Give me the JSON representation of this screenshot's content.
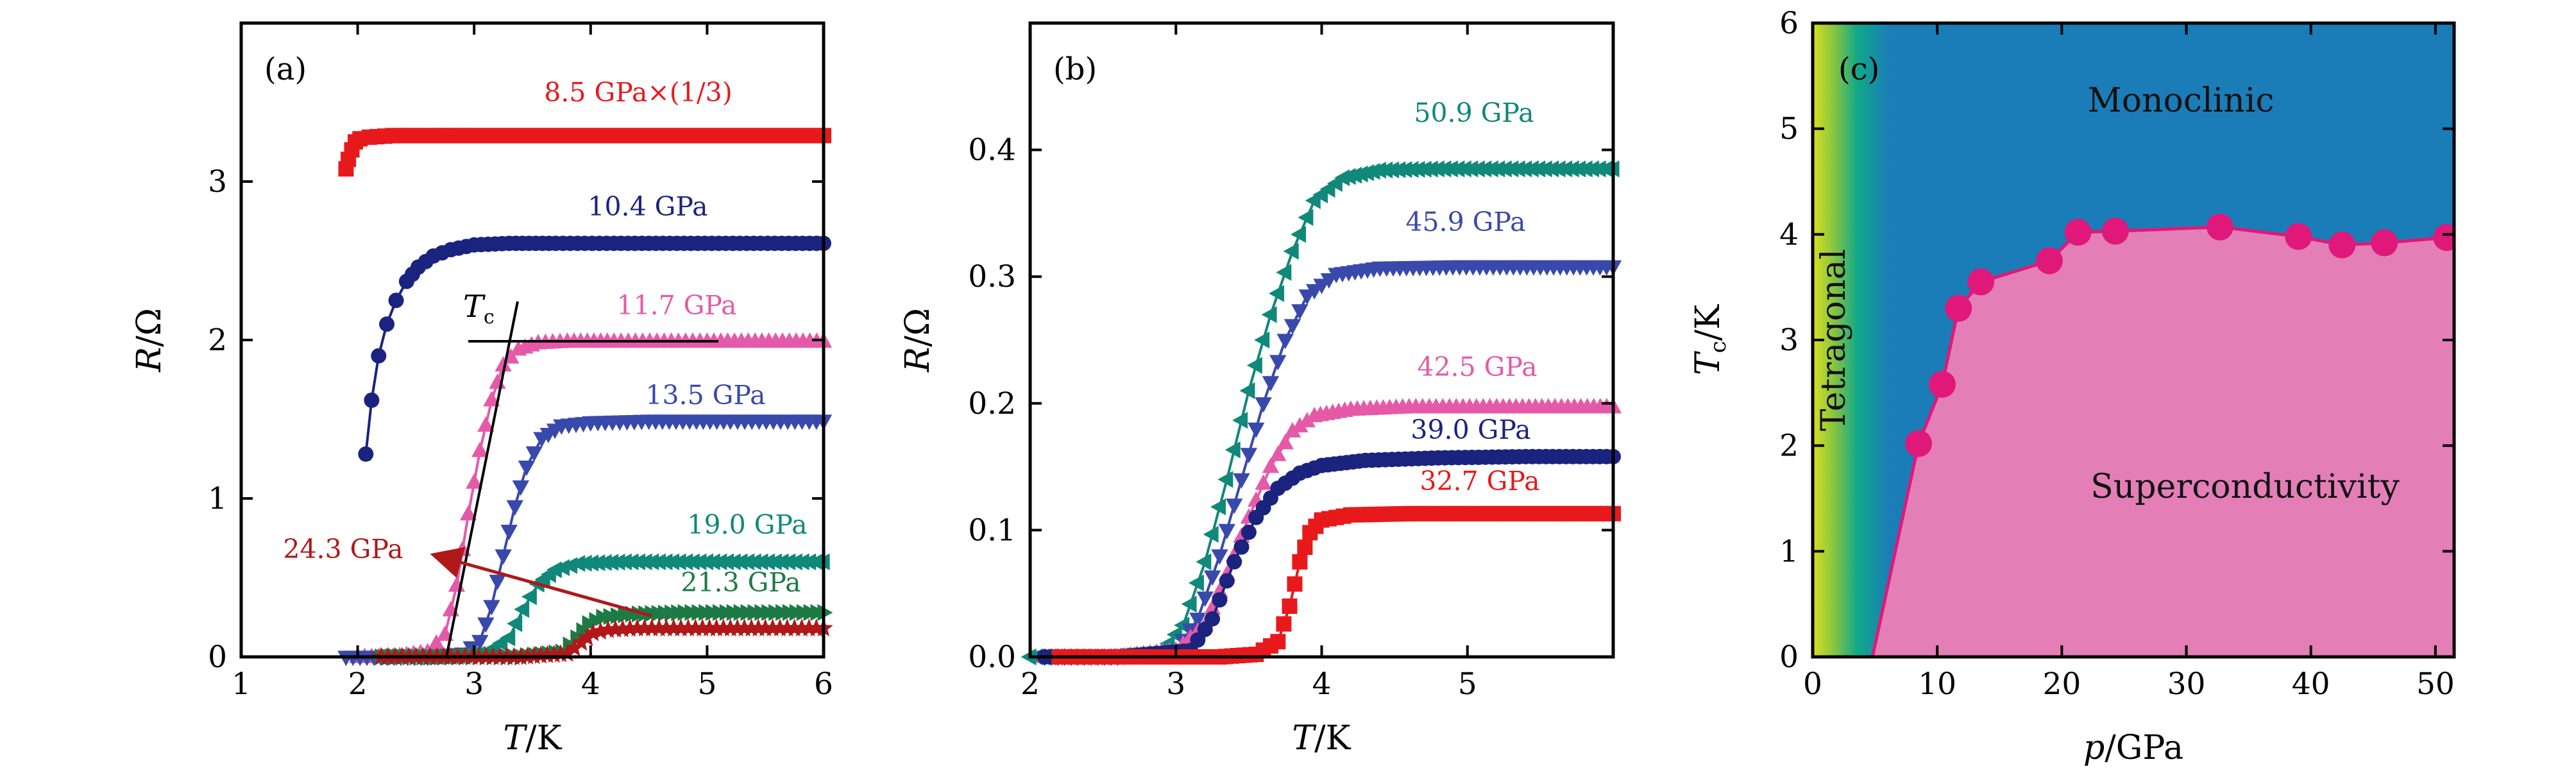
{
  "colors": {
    "red": "#e8191b",
    "navy": "#1a237e",
    "pink": "#e55aa8",
    "blue": "#3949ab",
    "teal": "#10887a",
    "green": "#1d7a45",
    "darkred": "#b0181a",
    "mono": "#1a7db8",
    "supercond": "#e37fb6",
    "tc_line": "#e0187a"
  },
  "chart_data": [
    {
      "panel": "(a)",
      "type": "line",
      "xlabel_italic": "T",
      "xlabel_rest": "/K",
      "ylabel_italic": "R",
      "ylabel_rest": "/Ω",
      "xlim": [
        1,
        6
      ],
      "ylim": [
        0,
        4
      ],
      "xticks": [
        1,
        2,
        3,
        4,
        5,
        6
      ],
      "yticks": [
        0,
        1,
        2,
        3
      ],
      "tc_annotation": "T",
      "tc_sub": "c",
      "arrow_label": "24.3 GPa",
      "series": [
        {
          "name": "8.5 GPa×(1/3)",
          "color": "red",
          "marker": "square",
          "x": [
            1.9,
            1.92,
            1.95,
            1.98,
            2.02,
            2.1,
            2.3,
            2.6,
            3.0,
            3.5,
            4.0,
            4.5,
            5.0,
            5.5,
            6.0
          ],
          "y": [
            3.08,
            3.14,
            3.2,
            3.25,
            3.27,
            3.28,
            3.29,
            3.29,
            3.29,
            3.29,
            3.29,
            3.29,
            3.29,
            3.29,
            3.29
          ]
        },
        {
          "name": "10.4 GPa",
          "color": "navy",
          "marker": "circle",
          "x": [
            2.07,
            2.12,
            2.18,
            2.25,
            2.33,
            2.42,
            2.52,
            2.65,
            2.8,
            3.0,
            3.3,
            3.7,
            4.2,
            4.8,
            5.4,
            6.0
          ],
          "y": [
            1.28,
            1.62,
            1.9,
            2.1,
            2.25,
            2.37,
            2.46,
            2.53,
            2.57,
            2.6,
            2.61,
            2.61,
            2.61,
            2.61,
            2.61,
            2.61
          ]
        },
        {
          "name": "11.7 GPa",
          "color": "pink",
          "marker": "triangle-up",
          "x": [
            2.0,
            2.3,
            2.6,
            2.75,
            2.85,
            2.95,
            3.05,
            3.15,
            3.25,
            3.38,
            3.55,
            3.8,
            4.2,
            5.0,
            6.0
          ],
          "y": [
            0.0,
            0.0,
            0.03,
            0.14,
            0.45,
            0.9,
            1.3,
            1.62,
            1.84,
            1.94,
            1.98,
            1.99,
            1.99,
            1.99,
            1.99
          ]
        },
        {
          "name": "13.5 GPa",
          "color": "blue",
          "marker": "triangle-down",
          "x": [
            1.9,
            2.2,
            2.6,
            2.9,
            3.05,
            3.15,
            3.25,
            3.35,
            3.45,
            3.58,
            3.75,
            4.0,
            4.5,
            5.2,
            6.0
          ],
          "y": [
            0.0,
            0.0,
            0.0,
            0.02,
            0.1,
            0.32,
            0.64,
            0.95,
            1.2,
            1.38,
            1.46,
            1.48,
            1.49,
            1.49,
            1.49
          ]
        },
        {
          "name": "19.0 GPa",
          "color": "teal",
          "marker": "triangle-left",
          "x": [
            2.2,
            2.7,
            3.1,
            3.3,
            3.42,
            3.55,
            3.7,
            3.9,
            4.3,
            5.0,
            6.0
          ],
          "y": [
            0.0,
            0.0,
            0.02,
            0.12,
            0.3,
            0.46,
            0.55,
            0.59,
            0.6,
            0.6,
            0.6
          ]
        },
        {
          "name": "21.3 GPa",
          "color": "green",
          "marker": "triangle-right",
          "x": [
            2.2,
            2.8,
            3.4,
            3.75,
            3.88,
            3.98,
            4.1,
            4.35,
            4.8,
            5.4,
            6.0
          ],
          "y": [
            0.0,
            0.0,
            0.0,
            0.03,
            0.12,
            0.21,
            0.25,
            0.27,
            0.28,
            0.28,
            0.28
          ]
        },
        {
          "name": "24.3 GPa",
          "color": "darkred",
          "marker": "star",
          "x": [
            2.2,
            2.8,
            3.4,
            3.8,
            3.92,
            4.02,
            4.15,
            4.4,
            4.9,
            5.5,
            6.0
          ],
          "y": [
            0.0,
            0.0,
            0.0,
            0.02,
            0.09,
            0.15,
            0.17,
            0.18,
            0.18,
            0.18,
            0.18
          ]
        }
      ]
    },
    {
      "panel": "(b)",
      "type": "line",
      "xlabel_italic": "T",
      "xlabel_rest": "/K",
      "ylabel_italic": "R",
      "ylabel_rest": "/Ω",
      "xlim": [
        2,
        6
      ],
      "ylim": [
        0,
        0.5
      ],
      "xticks": [
        2,
        3,
        4,
        5
      ],
      "yticks": [
        0.0,
        0.1,
        0.2,
        0.3,
        0.4
      ],
      "series": [
        {
          "name": "50.9 GPa",
          "color": "teal",
          "marker": "triangle-left",
          "x": [
            2.0,
            2.5,
            2.9,
            3.05,
            3.2,
            3.35,
            3.5,
            3.65,
            3.8,
            3.95,
            4.15,
            4.4,
            4.8,
            5.4,
            6.0
          ],
          "y": [
            0.0,
            0.0,
            0.003,
            0.025,
            0.075,
            0.14,
            0.21,
            0.27,
            0.32,
            0.36,
            0.378,
            0.384,
            0.385,
            0.385,
            0.385
          ]
        },
        {
          "name": "45.9 GPa",
          "color": "blue",
          "marker": "triangle-down",
          "x": [
            2.1,
            2.6,
            3.0,
            3.15,
            3.3,
            3.45,
            3.6,
            3.75,
            3.9,
            4.1,
            4.4,
            4.9,
            5.5,
            6.0
          ],
          "y": [
            0.0,
            0.0,
            0.005,
            0.03,
            0.08,
            0.14,
            0.2,
            0.25,
            0.285,
            0.302,
            0.307,
            0.308,
            0.308,
            0.308
          ]
        },
        {
          "name": "42.5 GPa",
          "color": "pink",
          "marker": "triangle-up",
          "x": [
            2.1,
            2.6,
            3.0,
            3.2,
            3.35,
            3.5,
            3.65,
            3.8,
            3.95,
            4.2,
            4.6,
            5.2,
            6.0
          ],
          "y": [
            0.0,
            0.0,
            0.005,
            0.025,
            0.065,
            0.11,
            0.15,
            0.178,
            0.19,
            0.195,
            0.197,
            0.197,
            0.197
          ]
        },
        {
          "name": "39.0 GPa",
          "color": "navy",
          "marker": "circle",
          "x": [
            2.1,
            2.6,
            3.1,
            3.25,
            3.4,
            3.55,
            3.7,
            3.85,
            4.0,
            4.3,
            4.8,
            5.4,
            6.0
          ],
          "y": [
            0.0,
            0.0,
            0.005,
            0.03,
            0.075,
            0.11,
            0.133,
            0.145,
            0.151,
            0.155,
            0.157,
            0.158,
            0.158
          ]
        },
        {
          "name": "32.7 GPa",
          "color": "red",
          "marker": "square",
          "x": [
            2.2,
            2.8,
            3.3,
            3.55,
            3.7,
            3.78,
            3.85,
            3.92,
            4.0,
            4.2,
            4.6,
            5.2,
            6.0
          ],
          "y": [
            0.0,
            0.0,
            0.0,
            0.002,
            0.012,
            0.04,
            0.075,
            0.098,
            0.108,
            0.112,
            0.113,
            0.113,
            0.113
          ]
        }
      ]
    },
    {
      "panel": "(c)",
      "type": "scatter",
      "xlabel_italic": "p",
      "xlabel_rest": "/GPa",
      "ylabel_italic": "T",
      "ylabel_sub": "c",
      "ylabel_rest": "/K",
      "xlim": [
        0,
        51.5
      ],
      "ylim": [
        0,
        6
      ],
      "xticks": [
        0,
        10,
        20,
        30,
        40,
        50
      ],
      "yticks": [
        0,
        1,
        2,
        3,
        4,
        5,
        6
      ],
      "regions": {
        "tetragonal": "Tetragonal",
        "monoclinic": "Monoclinic",
        "superconductivity": "Superconductivity"
      },
      "boundary": {
        "x": [
          4.8,
          8.5,
          10.4,
          11.7,
          13.5,
          19.0,
          21.3,
          24.3,
          32.7,
          39.0,
          42.5,
          45.9,
          50.9,
          51.5
        ],
        "y": [
          0.0,
          2.02,
          2.58,
          3.3,
          3.55,
          3.75,
          4.02,
          4.03,
          4.07,
          3.98,
          3.9,
          3.92,
          3.97,
          3.97
        ]
      },
      "points": {
        "x": [
          8.5,
          10.4,
          11.7,
          13.5,
          19.0,
          21.3,
          24.3,
          32.7,
          39.0,
          42.5,
          45.9,
          50.9
        ],
        "y": [
          2.02,
          2.58,
          3.3,
          3.55,
          3.75,
          4.02,
          4.03,
          4.07,
          3.98,
          3.9,
          3.92,
          3.97
        ]
      }
    }
  ]
}
